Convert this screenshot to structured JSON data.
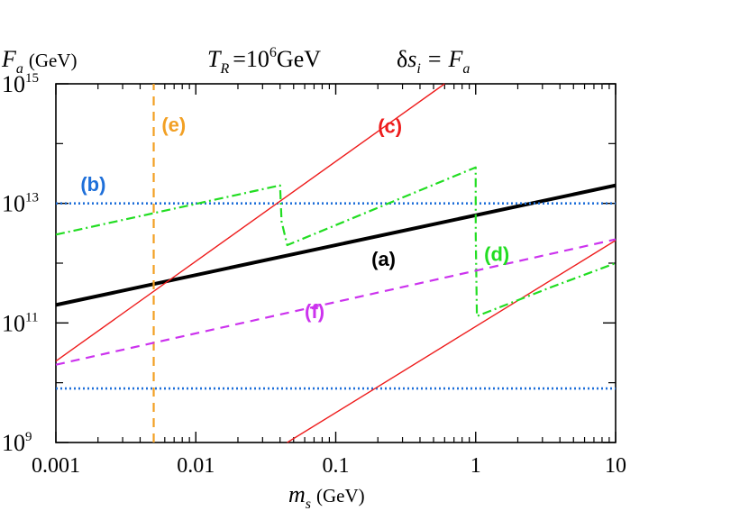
{
  "chart_data": {
    "type": "line",
    "x_scale": "log",
    "y_scale": "log",
    "xlim": [
      0.001,
      10
    ],
    "ylim": [
      1000000000.0,
      1000000000000000.0
    ],
    "x_ticks": [
      {
        "value": 0.001,
        "label": "0.001"
      },
      {
        "value": 0.01,
        "label": "0.01"
      },
      {
        "value": 0.1,
        "label": "0.1"
      },
      {
        "value": 1,
        "label": "1"
      },
      {
        "value": 10,
        "label": "10"
      }
    ],
    "y_ticks": [
      {
        "value": 1000000000.0,
        "base": "10",
        "exp": "9"
      },
      {
        "value": 100000000000.0,
        "base": "10",
        "exp": "11"
      },
      {
        "value": 10000000000000.0,
        "base": "10",
        "exp": "13"
      },
      {
        "value": 1000000000000000.0,
        "base": "10",
        "exp": "15"
      }
    ],
    "ylabel": {
      "symbol": "F",
      "sub": "a",
      "unit": "(GeV)"
    },
    "xlabel": {
      "symbol": "m",
      "sub": "s",
      "unit": "(GeV)"
    },
    "title": {
      "left_symbol": "T",
      "left_sub": "R",
      "left_eq": "=10",
      "left_exp": "6",
      "left_unit": "GeV",
      "right_delta": "δ",
      "right_s": "s",
      "right_sub": "i",
      "right_eq": "=",
      "right_F": "F",
      "right_F_sub": "a"
    },
    "series": [
      {
        "name": "(a)",
        "color": "#000000",
        "style": "solid-thick",
        "points": [
          [
            0.001,
            200000000000.0
          ],
          [
            10,
            20000000000000.0
          ]
        ]
      },
      {
        "name": "(b)",
        "color": "#1e6fd9",
        "style": "dotted",
        "points": [
          [
            0.001,
            10000000000000.0
          ],
          [
            10,
            10000000000000.0
          ]
        ]
      },
      {
        "name": "(b)-lower",
        "color": "#1e6fd9",
        "style": "dotted",
        "points": [
          [
            0.001,
            8000000000.0
          ],
          [
            10,
            8000000000.0
          ]
        ]
      },
      {
        "name": "(c)",
        "color": "#ee1c1c",
        "style": "solid-thin",
        "points": [
          [
            0.001,
            23000000000.0
          ],
          [
            0.6,
            1000000000000000.0
          ]
        ]
      },
      {
        "name": "(c)-lower",
        "color": "#ee1c1c",
        "style": "solid-thin",
        "points": [
          [
            0.045,
            1000000000.0
          ],
          [
            10,
            2400000000000.0
          ]
        ]
      },
      {
        "name": "(d)",
        "color": "#22dd22",
        "style": "dash-dot",
        "points": [
          [
            0.001,
            3000000000000.0
          ],
          [
            0.04,
            20000000000000.0
          ],
          [
            0.041,
            5000000000000.0
          ],
          [
            0.045,
            2000000000000.0
          ],
          [
            1,
            40000000000000.0
          ],
          [
            1.001,
            3000000000000.0
          ],
          [
            1.02,
            130000000000.0
          ],
          [
            3.5,
            400000000000.0
          ],
          [
            10,
            1000000000000.0
          ]
        ]
      },
      {
        "name": "(e)",
        "color": "#f2a024",
        "style": "dashed",
        "points": [
          [
            0.005,
            1000000000.0
          ],
          [
            0.005,
            1000000000000000.0
          ]
        ]
      },
      {
        "name": "(f)",
        "color": "#cc33ee",
        "style": "dashed",
        "points": [
          [
            0.001,
            20000000000.0
          ],
          [
            10,
            2500000000000.0
          ]
        ]
      }
    ],
    "annotations": [
      {
        "text": "(a)",
        "x": 0.18,
        "y": 900000000000.0,
        "color": "#000000"
      },
      {
        "text": "(b)",
        "x": 0.0015,
        "y": 16000000000000.0,
        "color": "#1e6fd9"
      },
      {
        "text": "(c)",
        "x": 0.2,
        "y": 150000000000000.0,
        "color": "#ee1c1c"
      },
      {
        "text": "(d)",
        "x": 1.15,
        "y": 1100000000000.0,
        "color": "#22dd22"
      },
      {
        "text": "(e)",
        "x": 0.0057,
        "y": 160000000000000.0,
        "color": "#f2a024"
      },
      {
        "text": "(f)",
        "x": 0.06,
        "y": 120000000000.0,
        "color": "#cc33ee"
      }
    ]
  }
}
